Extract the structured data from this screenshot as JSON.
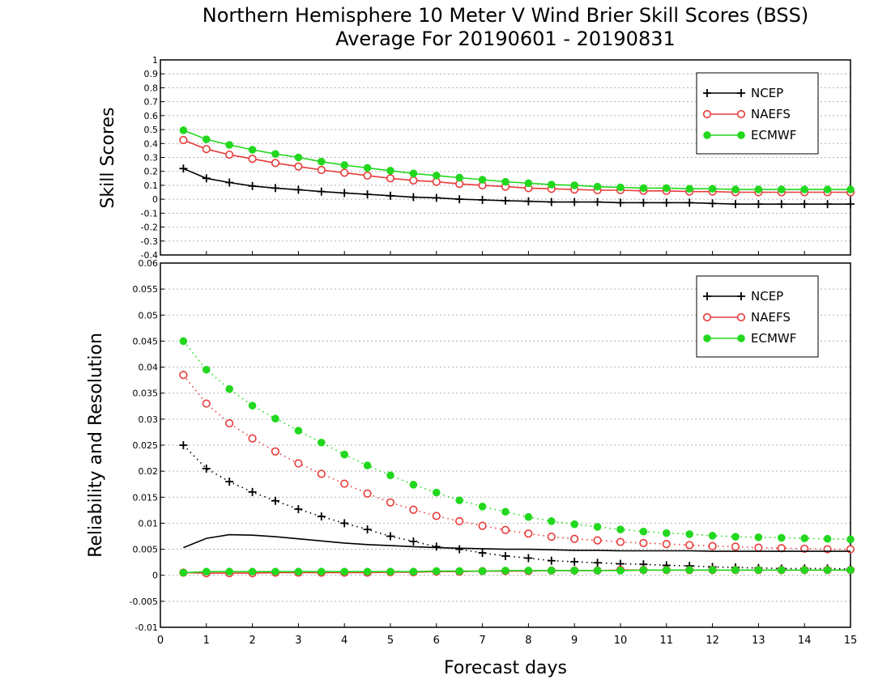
{
  "chart_data": [
    {
      "type": "line",
      "title": "Northern Hemisphere 10 Meter V Wind Brier Skill Scores (BSS)",
      "subtitle": "Average For 20190601 - 20190831",
      "xlabel": "",
      "ylabel": "Skill Scores",
      "xlim": [
        0,
        15
      ],
      "ylim": [
        -0.4,
        1
      ],
      "grid": true,
      "legend_position": "top-right",
      "ytick_labels": [
        "-0.4",
        "-0.3",
        "-0.2",
        "-0.1",
        "0",
        "0.1",
        "0.2",
        "0.3",
        "0.4",
        "0.5",
        "0.6",
        "0.7",
        "0.8",
        "0.9",
        "1"
      ],
      "x": [
        0.5,
        1,
        1.5,
        2,
        2.5,
        3,
        3.5,
        4,
        4.5,
        5,
        5.5,
        6,
        6.5,
        7,
        7.5,
        8,
        8.5,
        9,
        9.5,
        10,
        10.5,
        11,
        11.5,
        12,
        12.5,
        13,
        13.5,
        14,
        14.5,
        15
      ],
      "series": [
        {
          "name": "NCEP",
          "color": "#000000",
          "marker": "plus",
          "style": "solid",
          "values": [
            0.22,
            0.15,
            0.12,
            0.095,
            0.08,
            0.068,
            0.055,
            0.045,
            0.035,
            0.025,
            0.015,
            0.01,
            0.0,
            -0.005,
            -0.01,
            -0.015,
            -0.02,
            -0.02,
            -0.02,
            -0.025,
            -0.025,
            -0.025,
            -0.025,
            -0.03,
            -0.035,
            -0.035,
            -0.035,
            -0.035,
            -0.035,
            -0.035
          ]
        },
        {
          "name": "NAEFS",
          "color": "#e83a3a",
          "marker": "open-circle",
          "style": "solid",
          "values": [
            0.425,
            0.36,
            0.32,
            0.29,
            0.26,
            0.235,
            0.21,
            0.19,
            0.17,
            0.15,
            0.135,
            0.125,
            0.11,
            0.1,
            0.09,
            0.08,
            0.075,
            0.07,
            0.065,
            0.065,
            0.06,
            0.06,
            0.055,
            0.055,
            0.05,
            0.05,
            0.05,
            0.05,
            0.05,
            0.05
          ]
        },
        {
          "name": "ECMWF",
          "color": "#22d81e",
          "marker": "filled-circle",
          "style": "solid",
          "values": [
            0.495,
            0.43,
            0.39,
            0.355,
            0.325,
            0.3,
            0.27,
            0.245,
            0.225,
            0.205,
            0.185,
            0.17,
            0.155,
            0.14,
            0.125,
            0.115,
            0.105,
            0.1,
            0.09,
            0.085,
            0.08,
            0.08,
            0.075,
            0.075,
            0.07,
            0.07,
            0.07,
            0.07,
            0.07,
            0.07
          ]
        }
      ]
    },
    {
      "type": "line",
      "title": "",
      "xlabel": "Forecast days",
      "ylabel": "Reliability and Resolution",
      "xlim": [
        0,
        15
      ],
      "ylim": [
        -0.01,
        0.06
      ],
      "grid": true,
      "legend_position": "top-right",
      "xtick_labels": [
        "0",
        "1",
        "2",
        "3",
        "4",
        "5",
        "6",
        "7",
        "8",
        "9",
        "10",
        "11",
        "12",
        "13",
        "14",
        "15"
      ],
      "ytick_labels": [
        "-0.01",
        "-0.005",
        "0",
        "0.005",
        "0.01",
        "0.015",
        "0.02",
        "0.025",
        "0.03",
        "0.035",
        "0.04",
        "0.045",
        "0.05",
        "0.055",
        "0.06"
      ],
      "x": [
        0.5,
        1,
        1.5,
        2,
        2.5,
        3,
        3.5,
        4,
        4.5,
        5,
        5.5,
        6,
        6.5,
        7,
        7.5,
        8,
        8.5,
        9,
        9.5,
        10,
        10.5,
        11,
        11.5,
        12,
        12.5,
        13,
        13.5,
        14,
        14.5,
        15
      ],
      "series": [
        {
          "name": "NCEP",
          "color": "#000000",
          "marker": "plus",
          "style": "dotted",
          "values": [
            0.025,
            0.0205,
            0.018,
            0.016,
            0.0143,
            0.0127,
            0.0113,
            0.01,
            0.0088,
            0.0075,
            0.0065,
            0.0055,
            0.005,
            0.0043,
            0.0037,
            0.0033,
            0.0028,
            0.0026,
            0.0024,
            0.0022,
            0.0021,
            0.0019,
            0.0018,
            0.0016,
            0.0015,
            0.0014,
            0.0013,
            0.0013,
            0.0013,
            0.0012
          ]
        },
        {
          "name": "NAEFS",
          "color": "#e83a3a",
          "marker": "open-circle",
          "style": "dotted",
          "values": [
            0.0385,
            0.033,
            0.0292,
            0.0263,
            0.0238,
            0.0215,
            0.0195,
            0.0176,
            0.0157,
            0.014,
            0.0126,
            0.0114,
            0.0104,
            0.0095,
            0.0087,
            0.008,
            0.0074,
            0.007,
            0.0067,
            0.0064,
            0.0062,
            0.006,
            0.0058,
            0.0056,
            0.0055,
            0.0053,
            0.0052,
            0.0051,
            0.005,
            0.005
          ]
        },
        {
          "name": "ECMWF",
          "color": "#22d81e",
          "marker": "filled-circle",
          "style": "dotted",
          "values": [
            0.045,
            0.0395,
            0.0358,
            0.0326,
            0.0301,
            0.0278,
            0.0255,
            0.0232,
            0.0211,
            0.0192,
            0.0174,
            0.0159,
            0.0144,
            0.0132,
            0.0122,
            0.0112,
            0.0104,
            0.0098,
            0.0093,
            0.0088,
            0.0084,
            0.0081,
            0.0079,
            0.0076,
            0.0074,
            0.0073,
            0.0072,
            0.0071,
            0.007,
            0.0069
          ]
        },
        {
          "name": "",
          "color": "#000000",
          "marker": "none",
          "style": "solid",
          "values": [
            0.0053,
            0.0071,
            0.0078,
            0.0077,
            0.0074,
            0.007,
            0.0066,
            0.0062,
            0.0059,
            0.0057,
            0.0055,
            0.0053,
            0.0052,
            0.0051,
            0.005,
            0.005,
            0.0049,
            0.0048,
            0.0048,
            0.0047,
            0.0047,
            0.0047,
            0.0047,
            0.0046,
            0.0046,
            0.0046,
            0.0046,
            0.0046,
            0.0046,
            0.0046
          ]
        },
        {
          "name": "",
          "color": "#e83a3a",
          "marker": "open-circle",
          "style": "solid",
          "values": [
            0.0005,
            0.0004,
            0.0004,
            0.0004,
            0.0005,
            0.0005,
            0.0005,
            0.0005,
            0.0005,
            0.0006,
            0.0006,
            0.0007,
            0.0007,
            0.0008,
            0.0008,
            0.0008,
            0.0009,
            0.0009,
            0.0009,
            0.001,
            0.001,
            0.001,
            0.001,
            0.001,
            0.001,
            0.001,
            0.001,
            0.001,
            0.001,
            0.001
          ]
        },
        {
          "name": "",
          "color": "#22d81e",
          "marker": "filled-circle",
          "style": "solid",
          "values": [
            0.0005,
            0.0007,
            0.0007,
            0.0007,
            0.0007,
            0.0007,
            0.0007,
            0.0007,
            0.0007,
            0.0007,
            0.0007,
            0.0008,
            0.0008,
            0.0008,
            0.0009,
            0.0009,
            0.0009,
            0.0009,
            0.0009,
            0.0009,
            0.001,
            0.001,
            0.001,
            0.001,
            0.001,
            0.001,
            0.001,
            0.001,
            0.001,
            0.001
          ]
        }
      ]
    }
  ]
}
